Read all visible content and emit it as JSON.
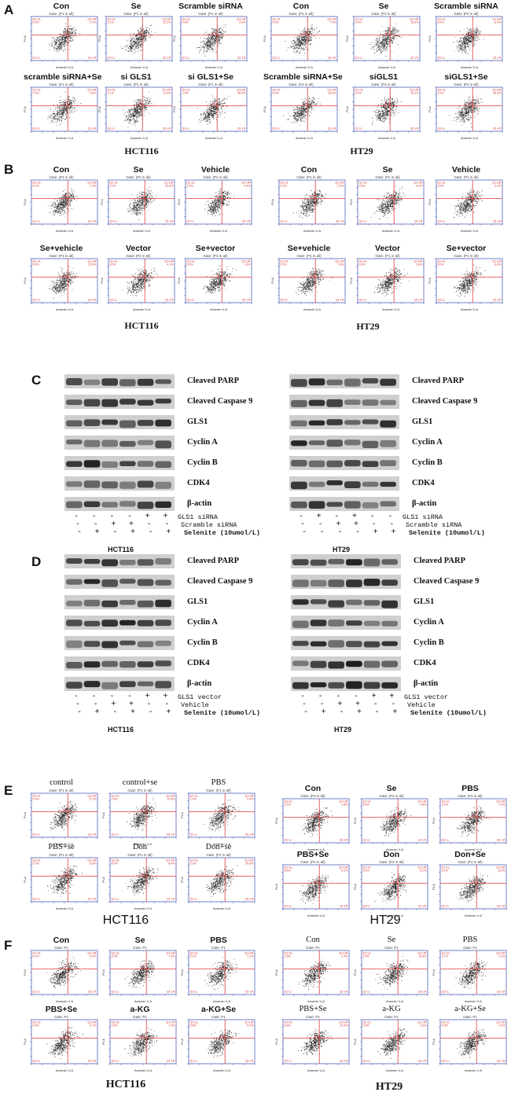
{
  "panel_letters": [
    "A",
    "B",
    "C",
    "D",
    "E",
    "F"
  ],
  "flow_text": {
    "y_axis": "PI-A",
    "x_axis": "Annexin V-A",
    "q_ul": "Q1-UL",
    "q_ur": "Q1-UR",
    "q_ll": "Q1-LL",
    "q_lr": "Q1-LR",
    "q_center": "Q1"
  },
  "panel_A": {
    "left_cell_line": "HCT116",
    "right_cell_line": "HT29",
    "left": {
      "gate": "Gate: (P1 in all)",
      "titles": [
        "Con",
        "Se",
        "Scramble siRNA",
        "scramble siRNA+Se",
        "si GLS1",
        "si GLS1+Se"
      ],
      "ul": [
        "0.0%",
        "2.1%",
        "0.0%",
        "7.3%",
        "1.1%",
        "7.4%"
      ],
      "ur": [
        "4.3%",
        "12.2%",
        "2.9%",
        "9.6%",
        "11.5%",
        "26.9%"
      ]
    },
    "right": {
      "gate": "Gate: (P4 in all)",
      "titles": [
        "Con",
        "Se",
        "Scramble siRNA",
        "Scramble siRNA+Se",
        "siGLS1",
        "siGLS1+Se"
      ],
      "ul": [
        "0.0%",
        "0.0%",
        "0.0%",
        "0.0%",
        "0.0%",
        "0.1%"
      ],
      "ur": [
        "7.4%",
        "23.6%",
        "8.3%",
        "18.5%",
        "18.1%",
        "30.5%"
      ]
    }
  },
  "panel_B": {
    "left_cell_line": "HCT116",
    "right_cell_line": "HT29",
    "left": {
      "gate": "Gate: (P2 in all)",
      "titles": [
        "Con",
        "Se",
        "Vehicle",
        "Se+vehicle",
        "Vector",
        "Se+vector"
      ],
      "ul": [
        "0.0%",
        "2.2%",
        "1.0%",
        "0.0%",
        "0.0%",
        "0.0%"
      ],
      "ur": [
        "2.3%",
        "20.8%",
        "2.8%",
        "12.8%",
        "4.1%",
        "7.3%"
      ]
    },
    "right": {
      "gate": "Gate: (P1 in all)",
      "titles": [
        "Con",
        "Se",
        "Vehicle",
        "Se+vehicle",
        "Vector",
        "Se+vector"
      ],
      "ul": [
        "0.0%",
        "0.0%",
        "0.0%",
        "0.0%",
        "0.0%",
        "0.0%"
      ],
      "ur": [
        "2.5%",
        "9.4%",
        "3.3%",
        "7.6%",
        "3.8%",
        "6.6%"
      ]
    }
  },
  "panel_C": {
    "left_cell_line": "HCT116",
    "right_cell_line": "HT29",
    "proteins": [
      "Cleaved PARP",
      "Cleaved Caspase 9",
      "GLS1",
      "Cyclin A",
      "Cyclin B",
      "CDK4",
      "β-actin"
    ],
    "conditions": [
      "GLS1 siRNA",
      "Scramble siRNA",
      "Selenite (10umol/L)"
    ],
    "left_signs": [
      [
        "-",
        "-",
        "-",
        "-",
        "+",
        "+"
      ],
      [
        "-",
        "-",
        "+",
        "+",
        "-",
        "-"
      ],
      [
        "-",
        "+",
        "-",
        "+",
        "-",
        "+"
      ]
    ],
    "right_signs": [
      [
        "-",
        "+",
        "-",
        "+",
        "-",
        "-"
      ],
      [
        "-",
        "-",
        "+",
        "+",
        "-",
        "-"
      ],
      [
        "-",
        "-",
        "-",
        "-",
        "+",
        "+"
      ]
    ]
  },
  "panel_D": {
    "left_cell_line": "HCT116",
    "right_cell_line": "HT29",
    "proteins": [
      "Cleaved PARP",
      "Cleaved Caspase 9",
      "GLS1",
      "Cyclin A",
      "Cyclin B",
      "CDK4",
      "β-actin"
    ],
    "conditions": [
      "GLS1 vector",
      "Vehicle",
      "Selenite (10umol/L)"
    ],
    "left_signs": [
      [
        "-",
        "-",
        "-",
        "-",
        "+",
        "+"
      ],
      [
        "-",
        "-",
        "+",
        "+",
        "-",
        "-"
      ],
      [
        "-",
        "+",
        "-",
        "+",
        "-",
        "+"
      ]
    ],
    "right_signs": [
      [
        "-",
        "-",
        "-",
        "-",
        "+",
        "+"
      ],
      [
        "-",
        "-",
        "+",
        "+",
        "-",
        "-"
      ],
      [
        "-",
        "+",
        "-",
        "+",
        "-",
        "+"
      ]
    ]
  },
  "panel_E": {
    "left_cell_line": "HCT116",
    "right_cell_line": "HT29",
    "left": {
      "gate": "Gate: (P1 in all)",
      "titles": [
        "control",
        "control+se",
        "PBS",
        "PBS+se",
        "Don",
        "Don+se"
      ],
      "ul": [
        "0.9%",
        "2.6%",
        "1.2%",
        "2.0%",
        "4.0%",
        "2.3%"
      ],
      "ur": [
        "5.1%",
        "10.8%",
        "5.4%",
        "8.5%",
        "8.4%",
        "20.5%"
      ]
    },
    "right": {
      "gate": "Gate: (P2 in all)",
      "titles": [
        "Con",
        "Se",
        "PBS",
        "PBS+Se",
        "Don",
        "Don+Se"
      ],
      "ul": [
        "3.2%",
        "4.6%",
        "2.3%",
        "8.6%",
        "5.2%",
        "3.2%"
      ],
      "ur": [
        "1.8%",
        "4.8%",
        "2.4%",
        "5.1%",
        "6.2%",
        "8.2%"
      ]
    }
  },
  "panel_F": {
    "left_cell_line": "HCT116",
    "right_cell_line": "HT29",
    "left": {
      "gate": "Gate: P1",
      "titles": [
        "Con",
        "Se",
        "PBS",
        "PBS+Se",
        "a-KG",
        "a-KG+Se"
      ],
      "ul": [
        "0.1%",
        "2.0%",
        "0.1%",
        "0.4%",
        "2.6%",
        "0.8%"
      ],
      "ur": [
        "0.9%",
        "7.3%",
        "1.1%",
        "6.1%",
        "1.4%",
        "5.0%"
      ]
    },
    "right": {
      "gate": "Gate: P1",
      "titles": [
        "Con",
        "Se",
        "PBS",
        "PBS+Se",
        "a-KG",
        "a-KG+Se"
      ],
      "ul": [
        "1.6%",
        "1.8%",
        "1.7%",
        "0.8%",
        "0.9%",
        "0.3%"
      ],
      "ur": [
        "2.4%",
        "14.6%",
        "2.2%",
        "10.5%",
        "2.6%",
        "4.3%"
      ]
    }
  }
}
